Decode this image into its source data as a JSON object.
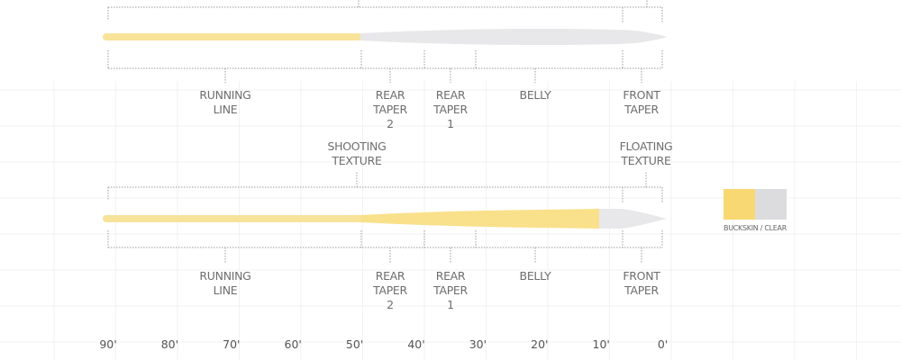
{
  "diagrams": [
    {
      "section_labels": [
        {
          "lines": [
            "RUNNING",
            "LINE"
          ]
        },
        {
          "lines": [
            "REAR",
            "TAPER",
            "2"
          ]
        },
        {
          "lines": [
            "REAR",
            "TAPER",
            "1"
          ]
        },
        {
          "lines": [
            "BELLY"
          ]
        },
        {
          "lines": [
            "FRONT",
            "TAPER"
          ]
        }
      ]
    },
    {
      "texture_labels": [
        {
          "lines": [
            "SHOOTING",
            "TEXTURE"
          ]
        },
        {
          "lines": [
            "FLOATING",
            "TEXTURE"
          ]
        }
      ],
      "section_labels": [
        {
          "lines": [
            "RUNNING",
            "LINE"
          ]
        },
        {
          "lines": [
            "REAR",
            "TAPER",
            "2"
          ]
        },
        {
          "lines": [
            "REAR",
            "TAPER",
            "1"
          ]
        },
        {
          "lines": [
            "BELLY"
          ]
        },
        {
          "lines": [
            "FRONT",
            "TAPER"
          ]
        }
      ]
    }
  ],
  "axis_ticks": [
    "90'",
    "80'",
    "70'",
    "60'",
    "50'",
    "40'",
    "30'",
    "20'",
    "10'",
    "0'"
  ],
  "legend": {
    "label": "BUCKSKIN / CLEAR",
    "colors": [
      "#f8d873",
      "#dcdcdf"
    ]
  },
  "colors": {
    "buckskin": "#f8e39a",
    "clear": "#e8e8ea"
  }
}
